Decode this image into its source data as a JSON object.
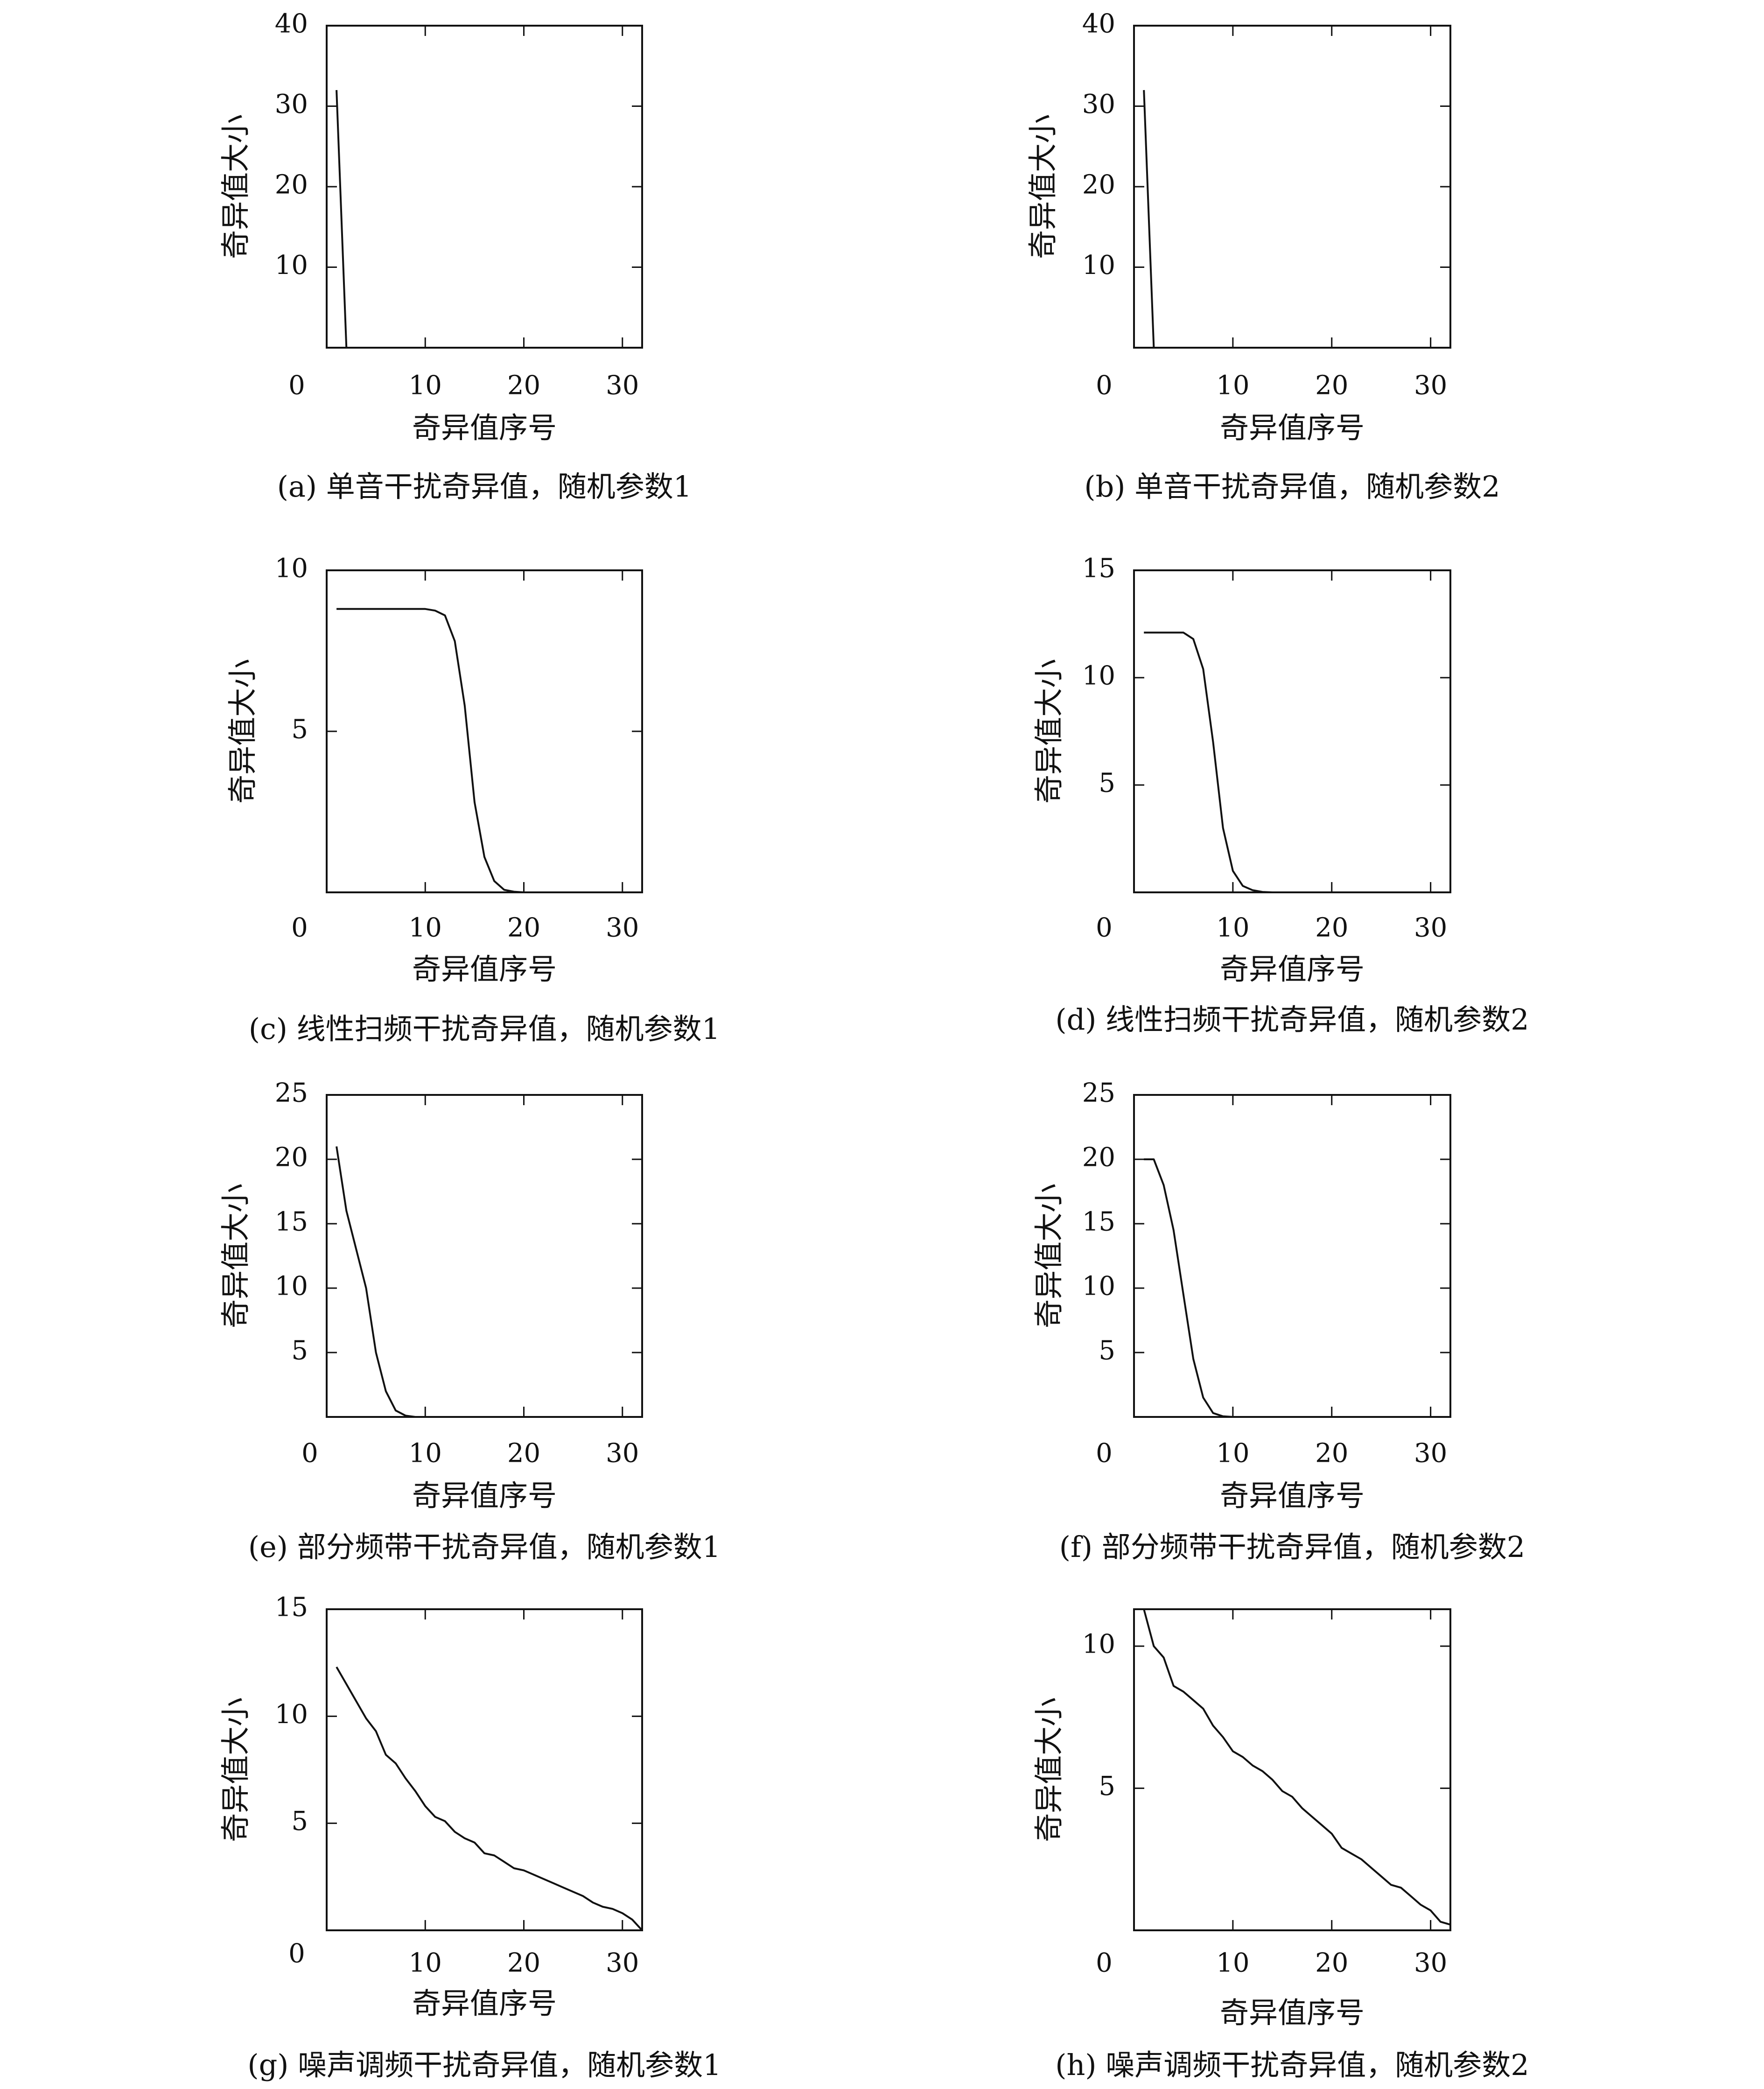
{
  "chart_data": [
    {
      "type": "line",
      "panel": "a",
      "caption": "(a) 单音干扰奇异值，随机参数1",
      "xlabel": "奇异值序号",
      "ylabel": "奇异值大小",
      "xlim": [
        0,
        32
      ],
      "ylim": [
        0,
        40
      ],
      "xticks": [
        10,
        20,
        30
      ],
      "yticks": [
        10,
        20,
        30,
        40
      ],
      "origin_label": "0",
      "x": [
        1,
        2
      ],
      "y": [
        32,
        0
      ]
    },
    {
      "type": "line",
      "panel": "b",
      "caption": "(b) 单音干扰奇异值，随机参数2",
      "xlabel": "奇异值序号",
      "ylabel": "奇异值大小",
      "xlim": [
        0,
        32
      ],
      "ylim": [
        0,
        40
      ],
      "xticks": [
        10,
        20,
        30
      ],
      "yticks": [
        10,
        20,
        30,
        40
      ],
      "origin_label": "0",
      "x": [
        1,
        2
      ],
      "y": [
        32,
        0
      ]
    },
    {
      "type": "line",
      "panel": "c",
      "caption": "(c) 线性扫频干扰奇异值，随机参数1",
      "xlabel": "奇异值序号",
      "ylabel": "奇异值大小",
      "xlim": [
        0,
        32
      ],
      "ylim": [
        0,
        10
      ],
      "xticks": [
        10,
        20,
        30
      ],
      "yticks": [
        5,
        10
      ],
      "origin_label": "0",
      "x": [
        1,
        2,
        3,
        4,
        5,
        6,
        7,
        8,
        9,
        10,
        11,
        12,
        13,
        14,
        15,
        16,
        17,
        18,
        19,
        20,
        22,
        25,
        28,
        32
      ],
      "y": [
        8.8,
        8.8,
        8.8,
        8.8,
        8.8,
        8.8,
        8.8,
        8.8,
        8.8,
        8.8,
        8.75,
        8.6,
        7.8,
        5.8,
        2.8,
        1.1,
        0.35,
        0.08,
        0.02,
        0.0,
        0.0,
        0.0,
        0.0,
        0.0
      ]
    },
    {
      "type": "line",
      "panel": "d",
      "caption": "(d) 线性扫频干扰奇异值，随机参数2",
      "xlabel": "奇异值序号",
      "ylabel": "奇异值大小",
      "xlim": [
        0,
        32
      ],
      "ylim": [
        0,
        15
      ],
      "xticks": [
        10,
        20,
        30
      ],
      "yticks": [
        5,
        10,
        15
      ],
      "origin_label": "0",
      "x": [
        1,
        2,
        3,
        4,
        5,
        6,
        7,
        8,
        9,
        10,
        11,
        12,
        13,
        14,
        16,
        20,
        25,
        32
      ],
      "y": [
        12.1,
        12.1,
        12.1,
        12.1,
        12.1,
        11.8,
        10.4,
        7.0,
        3.0,
        1.0,
        0.3,
        0.1,
        0.02,
        0.0,
        0.0,
        0.0,
        0.0,
        0.0
      ]
    },
    {
      "type": "line",
      "panel": "e",
      "caption": "(e) 部分频带干扰奇异值，随机参数1",
      "xlabel": "奇异值序号",
      "ylabel": "奇异值大小",
      "xlim": [
        0,
        32
      ],
      "ylim": [
        0,
        25
      ],
      "xticks": [
        10,
        20,
        30
      ],
      "yticks": [
        5,
        10,
        15,
        20,
        25
      ],
      "origin_label": "0",
      "x": [
        1,
        2,
        3,
        4,
        5,
        6,
        7,
        8,
        9,
        10,
        12,
        15,
        20,
        25,
        32
      ],
      "y": [
        21.0,
        16.0,
        13.0,
        10.0,
        5.0,
        2.0,
        0.5,
        0.1,
        0.0,
        0.0,
        0.0,
        0.0,
        0.0,
        0.0,
        0.0
      ]
    },
    {
      "type": "line",
      "panel": "f",
      "caption": "(f) 部分频带干扰奇异值，随机参数2",
      "xlabel": "奇异值序号",
      "ylabel": "奇异值大小",
      "xlim": [
        0,
        32
      ],
      "ylim": [
        0,
        25
      ],
      "xticks": [
        10,
        20,
        30
      ],
      "yticks": [
        5,
        10,
        15,
        20,
        25
      ],
      "origin_label": "0",
      "x": [
        1,
        2,
        3,
        4,
        5,
        6,
        7,
        8,
        9,
        10,
        12,
        15,
        20,
        25,
        32
      ],
      "y": [
        20.0,
        20.0,
        18.0,
        14.5,
        9.5,
        4.5,
        1.5,
        0.3,
        0.05,
        0.0,
        0.0,
        0.0,
        0.0,
        0.0,
        0.0
      ]
    },
    {
      "type": "line",
      "panel": "g",
      "caption": "(g) 噪声调频干扰奇异值，随机参数1",
      "xlabel": "奇异值序号",
      "ylabel": "奇异值大小",
      "xlim": [
        0,
        32
      ],
      "ylim": [
        0,
        15
      ],
      "xticks": [
        10,
        20,
        30
      ],
      "yticks": [
        5,
        10,
        15
      ],
      "origin_label": "0",
      "x": [
        1,
        2,
        3,
        4,
        5,
        6,
        7,
        8,
        9,
        10,
        11,
        12,
        13,
        14,
        15,
        16,
        17,
        18,
        19,
        20,
        21,
        22,
        23,
        24,
        25,
        26,
        27,
        28,
        29,
        30,
        31,
        32
      ],
      "y": [
        12.3,
        11.5,
        10.7,
        9.9,
        9.3,
        8.2,
        7.8,
        7.1,
        6.5,
        5.8,
        5.3,
        5.1,
        4.6,
        4.3,
        4.1,
        3.6,
        3.5,
        3.2,
        2.9,
        2.8,
        2.6,
        2.4,
        2.2,
        2.0,
        1.8,
        1.6,
        1.3,
        1.1,
        1.0,
        0.8,
        0.5,
        0.0
      ]
    },
    {
      "type": "line",
      "panel": "h",
      "caption": "(h) 噪声调频干扰奇异值，随机参数2",
      "xlabel": "奇异值序号",
      "ylabel": "奇异值大小",
      "xlim": [
        0,
        32
      ],
      "ylim": [
        0,
        11.3
      ],
      "xticks": [
        10,
        20,
        30
      ],
      "yticks": [
        5,
        10
      ],
      "origin_label": "0",
      "x": [
        1,
        2,
        3,
        4,
        5,
        6,
        7,
        8,
        9,
        10,
        11,
        12,
        13,
        14,
        15,
        16,
        17,
        18,
        19,
        20,
        21,
        22,
        23,
        24,
        25,
        26,
        27,
        28,
        29,
        30,
        31,
        32
      ],
      "y": [
        11.5,
        10.0,
        9.6,
        8.6,
        8.4,
        8.1,
        7.8,
        7.2,
        6.8,
        6.3,
        6.1,
        5.8,
        5.6,
        5.3,
        4.9,
        4.7,
        4.3,
        4.0,
        3.7,
        3.4,
        2.9,
        2.7,
        2.5,
        2.2,
        1.9,
        1.6,
        1.5,
        1.2,
        0.9,
        0.7,
        0.3,
        0.2
      ]
    }
  ]
}
